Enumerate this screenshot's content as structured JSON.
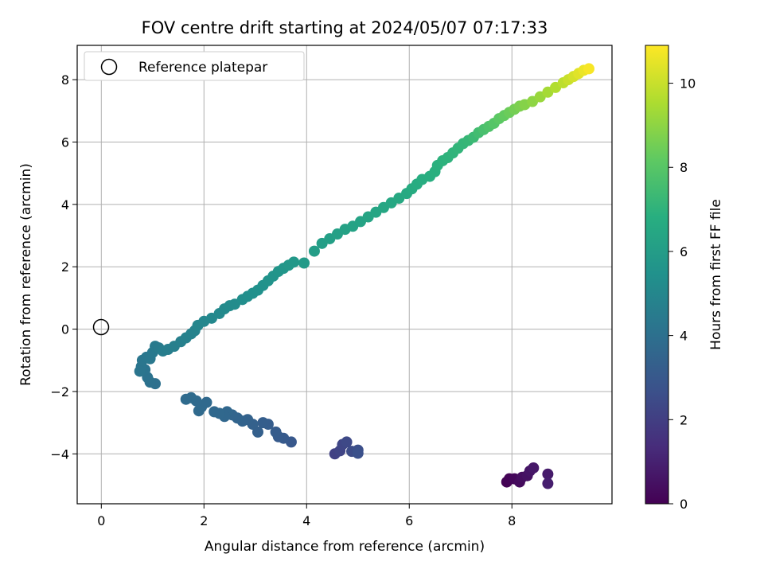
{
  "chart_data": {
    "type": "scatter",
    "title": "FOV centre drift starting at 2024/05/07 07:17:33",
    "xlabel": "Angular distance from reference (arcmin)",
    "ylabel": "Rotation from reference (arcmin)",
    "xlim": [
      -0.47,
      9.95
    ],
    "ylim": [
      -5.6,
      9.1
    ],
    "xticks": [
      0,
      2,
      4,
      6,
      8
    ],
    "yticks": [
      -4,
      -2,
      0,
      2,
      4,
      6,
      8
    ],
    "grid": true,
    "legend": {
      "position": "top-left",
      "entries": [
        {
          "label": "Reference platepar",
          "marker": "open-circle"
        }
      ]
    },
    "reference_point": {
      "x": 0,
      "y": 0
    },
    "colorbar": {
      "label": "Hours from first FF file",
      "range": [
        0,
        10.9
      ],
      "ticks": [
        0,
        2,
        4,
        6,
        8,
        10
      ],
      "colormap": "viridis"
    },
    "points": [
      [
        7.9,
        -4.9,
        0.05
      ],
      [
        7.95,
        -4.8,
        0.1
      ],
      [
        8.05,
        -4.8,
        0.2
      ],
      [
        8.15,
        -4.9,
        0.3
      ],
      [
        8.2,
        -4.75,
        0.4
      ],
      [
        8.3,
        -4.7,
        0.5
      ],
      [
        8.35,
        -4.55,
        0.6
      ],
      [
        8.42,
        -4.45,
        0.7
      ],
      [
        8.7,
        -4.65,
        0.8
      ],
      [
        8.7,
        -4.95,
        0.9
      ],
      [
        4.55,
        -4.0,
        2.1
      ],
      [
        4.65,
        -3.9,
        2.2
      ],
      [
        4.7,
        -3.7,
        2.3
      ],
      [
        4.78,
        -3.62,
        2.4
      ],
      [
        4.88,
        -3.92,
        2.5
      ],
      [
        5.0,
        -3.88,
        2.6
      ],
      [
        5.0,
        -3.98,
        2.7
      ],
      [
        3.7,
        -3.62,
        3.0
      ],
      [
        3.55,
        -3.5,
        3.05
      ],
      [
        3.45,
        -3.45,
        3.1
      ],
      [
        3.4,
        -3.3,
        3.15
      ],
      [
        3.25,
        -3.05,
        3.2
      ],
      [
        3.15,
        -3.0,
        3.25
      ],
      [
        3.05,
        -3.3,
        3.3
      ],
      [
        2.95,
        -3.05,
        3.35
      ],
      [
        2.85,
        -2.9,
        3.4
      ],
      [
        2.75,
        -2.95,
        3.45
      ],
      [
        2.65,
        -2.85,
        3.5
      ],
      [
        2.55,
        -2.75,
        3.55
      ],
      [
        2.45,
        -2.65,
        3.6
      ],
      [
        2.4,
        -2.8,
        3.62
      ],
      [
        2.3,
        -2.7,
        3.65
      ],
      [
        2.2,
        -2.65,
        3.68
      ],
      [
        2.05,
        -2.35,
        3.7
      ],
      [
        1.95,
        -2.5,
        3.72
      ],
      [
        1.9,
        -2.62,
        3.74
      ],
      [
        1.85,
        -2.3,
        3.76
      ],
      [
        1.75,
        -2.2,
        3.78
      ],
      [
        1.65,
        -2.25,
        3.8
      ],
      [
        1.05,
        -1.75,
        4.0
      ],
      [
        0.95,
        -1.7,
        4.05
      ],
      [
        0.9,
        -1.55,
        4.1
      ],
      [
        0.85,
        -1.3,
        4.15
      ],
      [
        0.78,
        -1.2,
        4.2
      ],
      [
        0.75,
        -1.35,
        4.22
      ],
      [
        0.8,
        -1.0,
        4.25
      ],
      [
        0.88,
        -0.9,
        4.3
      ],
      [
        0.95,
        -0.95,
        4.35
      ],
      [
        1.0,
        -0.75,
        4.4
      ],
      [
        1.05,
        -0.55,
        4.45
      ],
      [
        1.12,
        -0.6,
        4.5
      ],
      [
        1.2,
        -0.7,
        4.55
      ],
      [
        1.3,
        -0.65,
        4.6
      ],
      [
        1.42,
        -0.55,
        4.65
      ],
      [
        1.55,
        -0.4,
        4.7
      ],
      [
        1.65,
        -0.28,
        4.75
      ],
      [
        1.75,
        -0.15,
        4.8
      ],
      [
        1.82,
        -0.05,
        4.85
      ],
      [
        1.88,
        0.12,
        4.95
      ],
      [
        2.0,
        0.25,
        5.0
      ],
      [
        2.15,
        0.35,
        5.05
      ],
      [
        2.3,
        0.5,
        5.1
      ],
      [
        2.4,
        0.65,
        5.15
      ],
      [
        2.5,
        0.75,
        5.2
      ],
      [
        2.6,
        0.8,
        5.25
      ],
      [
        2.75,
        0.95,
        5.3
      ],
      [
        2.85,
        1.05,
        5.35
      ],
      [
        2.95,
        1.15,
        5.4
      ],
      [
        3.05,
        1.25,
        5.45
      ],
      [
        3.15,
        1.4,
        5.5
      ],
      [
        3.25,
        1.55,
        5.55
      ],
      [
        3.35,
        1.7,
        5.6
      ],
      [
        3.45,
        1.85,
        5.65
      ],
      [
        3.55,
        1.95,
        5.7
      ],
      [
        3.65,
        2.05,
        5.75
      ],
      [
        3.75,
        2.15,
        5.8
      ],
      [
        3.95,
        2.12,
        5.85
      ],
      [
        4.15,
        2.5,
        6.0
      ],
      [
        4.3,
        2.75,
        6.05
      ],
      [
        4.45,
        2.9,
        6.1
      ],
      [
        4.6,
        3.05,
        6.15
      ],
      [
        4.75,
        3.2,
        6.2
      ],
      [
        4.9,
        3.3,
        6.25
      ],
      [
        5.05,
        3.45,
        6.3
      ],
      [
        5.2,
        3.6,
        6.35
      ],
      [
        5.35,
        3.75,
        6.4
      ],
      [
        5.5,
        3.9,
        6.45
      ],
      [
        5.65,
        4.05,
        6.5
      ],
      [
        5.8,
        4.2,
        6.55
      ],
      [
        5.95,
        4.35,
        6.6
      ],
      [
        6.05,
        4.5,
        6.65
      ],
      [
        6.15,
        4.65,
        6.7
      ],
      [
        6.25,
        4.8,
        6.75
      ],
      [
        6.4,
        4.9,
        6.8
      ],
      [
        6.5,
        5.05,
        6.85
      ],
      [
        6.55,
        5.25,
        6.9
      ],
      [
        6.65,
        5.4,
        6.95
      ],
      [
        6.75,
        5.5,
        7.0
      ],
      [
        6.85,
        5.65,
        7.05
      ],
      [
        6.95,
        5.8,
        7.1
      ],
      [
        7.05,
        5.95,
        7.15
      ],
      [
        7.15,
        6.05,
        7.2
      ],
      [
        7.25,
        6.15,
        7.35
      ],
      [
        7.35,
        6.3,
        7.5
      ],
      [
        7.45,
        6.4,
        7.65
      ],
      [
        7.55,
        6.5,
        7.8
      ],
      [
        7.65,
        6.6,
        7.95
      ],
      [
        7.75,
        6.75,
        8.1
      ],
      [
        7.85,
        6.85,
        8.25
      ],
      [
        7.95,
        6.95,
        8.4
      ],
      [
        8.05,
        7.05,
        8.55
      ],
      [
        8.15,
        7.15,
        8.7
      ],
      [
        8.25,
        7.2,
        8.85
      ],
      [
        8.4,
        7.3,
        9.0
      ],
      [
        8.55,
        7.45,
        9.2
      ],
      [
        8.7,
        7.6,
        9.4
      ],
      [
        8.85,
        7.75,
        9.6
      ],
      [
        9.0,
        7.9,
        9.8
      ],
      [
        9.1,
        8.0,
        10.0
      ],
      [
        9.2,
        8.1,
        10.2
      ],
      [
        9.3,
        8.2,
        10.4
      ],
      [
        9.4,
        8.3,
        10.6
      ],
      [
        9.5,
        8.35,
        10.8
      ]
    ]
  }
}
